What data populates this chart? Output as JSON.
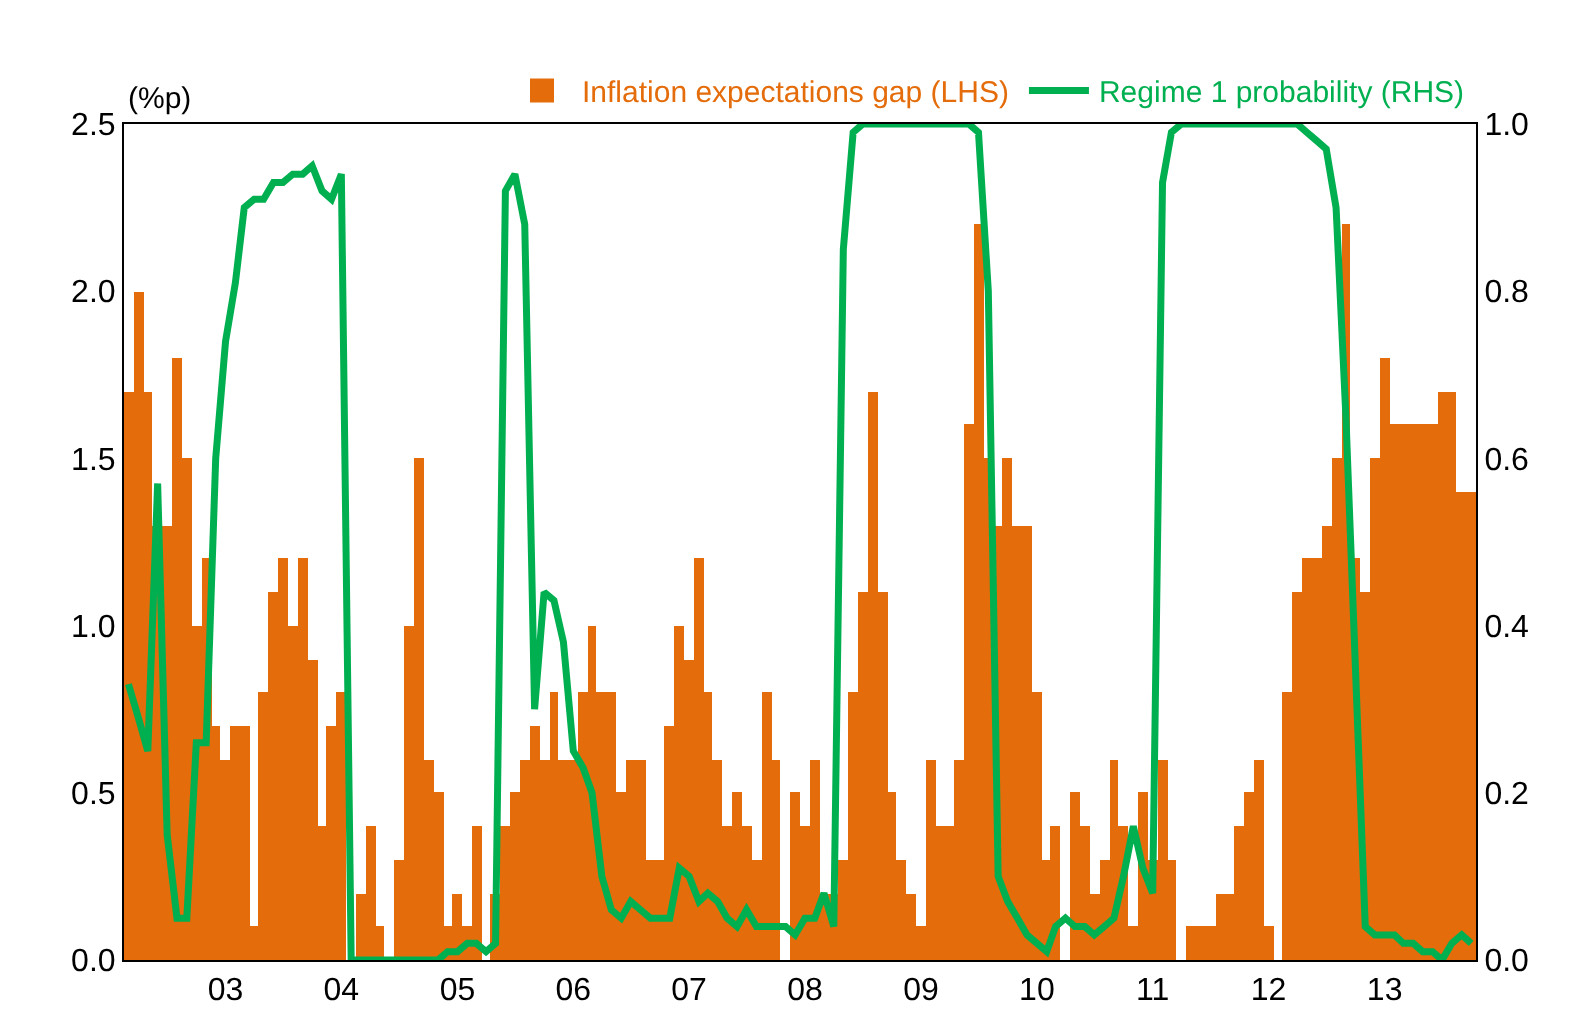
{
  "chart_data": {
    "type": "bar",
    "ylabel": "(%p)",
    "x": [
      "2002-03",
      "2002-04",
      "2002-05",
      "2002-06",
      "2002-07",
      "2002-08",
      "2002-09",
      "2002-10",
      "2002-11",
      "2002-12",
      "2003-01",
      "2003-02",
      "2003-03",
      "2003-04",
      "2003-05",
      "2003-06",
      "2003-07",
      "2003-08",
      "2003-09",
      "2003-10",
      "2003-11",
      "2003-12",
      "2004-01",
      "2004-02",
      "2004-03",
      "2004-04",
      "2004-05",
      "2004-06",
      "2004-07",
      "2004-08",
      "2004-09",
      "2004-10",
      "2004-11",
      "2004-12",
      "2005-01",
      "2005-02",
      "2005-03",
      "2005-04",
      "2005-05",
      "2005-06",
      "2005-07",
      "2005-08",
      "2005-09",
      "2005-10",
      "2005-11",
      "2005-12",
      "2006-01",
      "2006-02",
      "2006-03",
      "2006-04",
      "2006-05",
      "2006-06",
      "2006-07",
      "2006-08",
      "2006-09",
      "2006-10",
      "2006-11",
      "2006-12",
      "2007-01",
      "2007-02",
      "2007-03",
      "2007-04",
      "2007-05",
      "2007-06",
      "2007-07",
      "2007-08",
      "2007-09",
      "2007-10",
      "2007-11",
      "2007-12",
      "2008-01",
      "2008-02",
      "2008-03",
      "2008-04",
      "2008-05",
      "2008-06",
      "2008-07",
      "2008-08",
      "2008-09",
      "2008-10",
      "2008-11",
      "2008-12",
      "2009-01",
      "2009-02",
      "2009-03",
      "2009-04",
      "2009-05",
      "2009-06",
      "2009-07",
      "2009-08",
      "2009-09",
      "2009-10",
      "2009-11",
      "2009-12",
      "2010-01",
      "2010-02",
      "2010-03",
      "2010-04",
      "2010-05",
      "2010-06",
      "2010-07",
      "2010-08",
      "2010-09",
      "2010-10",
      "2010-11",
      "2010-12",
      "2011-01",
      "2011-02",
      "2011-03",
      "2011-04",
      "2011-05",
      "2011-06",
      "2011-07",
      "2011-08",
      "2011-09",
      "2011-10",
      "2011-11",
      "2011-12",
      "2012-01",
      "2012-02",
      "2012-03",
      "2012-04",
      "2012-05",
      "2012-06",
      "2012-07",
      "2012-08",
      "2012-09",
      "2012-10",
      "2012-11",
      "2012-12",
      "2013-01",
      "2013-02",
      "2013-03",
      "2013-04",
      "2013-05",
      "2013-06",
      "2013-07",
      "2013-08",
      "2013-09",
      "2013-10"
    ],
    "series": [
      {
        "name": "Inflation expectations gap (LHS)",
        "color": "#e46c0a",
        "values": [
          1.7,
          2.0,
          1.7,
          1.3,
          1.3,
          1.8,
          1.5,
          1.0,
          1.2,
          0.7,
          0.6,
          0.7,
          0.7,
          0.1,
          0.8,
          1.1,
          1.2,
          1.0,
          1.2,
          0.9,
          0.4,
          0.7,
          0.8,
          0,
          0.2,
          0.4,
          0.1,
          0,
          0.3,
          1.0,
          1.5,
          0.6,
          0.5,
          0.1,
          0.2,
          0.1,
          0.4,
          0,
          0.2,
          0.4,
          0.5,
          0.6,
          0.7,
          0.6,
          0.8,
          0.6,
          0.6,
          0.8,
          1.0,
          0.8,
          0.8,
          0.5,
          0.6,
          0.6,
          0.3,
          0.3,
          0.7,
          1.0,
          0.9,
          1.2,
          0.8,
          0.6,
          0.4,
          0.5,
          0.4,
          0.3,
          0.8,
          0.6,
          0,
          0.5,
          0.4,
          0.6,
          0.2,
          0.2,
          0.3,
          0.8,
          1.1,
          1.7,
          1.1,
          0.5,
          0.3,
          0.2,
          0.1,
          0.6,
          0.4,
          0.4,
          0.6,
          1.6,
          2.2,
          1.5,
          1.3,
          1.5,
          1.3,
          1.3,
          0.8,
          0.3,
          0.4,
          0,
          0.5,
          0.4,
          0.2,
          0.3,
          0.6,
          0.4,
          0.1,
          0.5,
          0.3,
          0.6,
          0.3,
          0,
          0.1,
          0.1,
          0.1,
          0.2,
          0.2,
          0.4,
          0.5,
          0.6,
          0.1,
          0,
          0.8,
          1.1,
          1.2,
          1.2,
          1.3,
          1.5,
          2.2,
          1.2,
          1.1,
          1.5,
          1.8,
          1.6,
          1.6,
          1.6,
          1.6,
          1.6,
          1.7,
          1.7,
          1.4,
          1.4
        ]
      },
      {
        "name": "Regime 1 probability (RHS)",
        "type": "line",
        "axis": "y2",
        "color": "#00b050",
        "values": [
          0.33,
          0.29,
          0.25,
          0.57,
          0.15,
          0.05,
          0.05,
          0.26,
          0.26,
          0.6,
          0.74,
          0.81,
          0.9,
          0.91,
          0.91,
          0.93,
          0.93,
          0.94,
          0.94,
          0.95,
          0.92,
          0.91,
          0.94,
          0,
          0,
          0,
          0,
          0,
          0,
          0,
          0,
          0,
          0,
          0.01,
          0.01,
          0.02,
          0.02,
          0.01,
          0.02,
          0.92,
          0.94,
          0.88,
          0.3,
          0.44,
          0.43,
          0.38,
          0.25,
          0.23,
          0.2,
          0.1,
          0.06,
          0.05,
          0.07,
          0.06,
          0.05,
          0.05,
          0.05,
          0.11,
          0.1,
          0.07,
          0.08,
          0.07,
          0.05,
          0.04,
          0.06,
          0.04,
          0.04,
          0.04,
          0.04,
          0.03,
          0.05,
          0.05,
          0.08,
          0.04,
          0.85,
          0.99,
          1,
          1,
          1,
          1,
          1,
          1,
          1,
          1,
          1,
          1,
          1,
          1,
          0.99,
          0.8,
          0.1,
          0.07,
          0.05,
          0.03,
          0.02,
          0.01,
          0.04,
          0.05,
          0.04,
          0.04,
          0.03,
          0.04,
          0.05,
          0.1,
          0.16,
          0.11,
          0.08,
          0.93,
          0.99,
          1,
          1,
          1,
          1,
          1,
          1,
          1,
          1,
          1,
          1,
          1,
          1,
          1,
          0.99,
          0.98,
          0.97,
          0.9,
          0.65,
          0.35,
          0.04,
          0.03,
          0.03,
          0.03,
          0.02,
          0.02,
          0.01,
          0.01,
          0,
          0.02,
          0.03,
          0.02
        ]
      }
    ],
    "xlim": [
      "2002-02-15",
      "2013-10-16"
    ],
    "xticks": [
      {
        "value": "2003-01",
        "label": "03"
      },
      {
        "value": "2004-01",
        "label": "04"
      },
      {
        "value": "2005-01",
        "label": "05"
      },
      {
        "value": "2006-01",
        "label": "06"
      },
      {
        "value": "2007-01",
        "label": "07"
      },
      {
        "value": "2008-01",
        "label": "08"
      },
      {
        "value": "2009-01",
        "label": "09"
      },
      {
        "value": "2010-01",
        "label": "10"
      },
      {
        "value": "2011-01",
        "label": "11"
      },
      {
        "value": "2012-01",
        "label": "12"
      },
      {
        "value": "2013-01",
        "label": "13"
      }
    ],
    "ylim": [
      0,
      2.5
    ],
    "yticks": [
      {
        "value": 0,
        "label": "0.0"
      },
      {
        "value": 0.5,
        "label": "0.5"
      },
      {
        "value": 1,
        "label": "1.0"
      },
      {
        "value": 1.5,
        "label": "1.5"
      },
      {
        "value": 2,
        "label": "2.0"
      },
      {
        "value": 2.5,
        "label": "2.5"
      }
    ],
    "y2lim": [
      0,
      1
    ],
    "y2ticks": [
      {
        "value": 0,
        "label": "0.0"
      },
      {
        "value": 0.2,
        "label": "0.2"
      },
      {
        "value": 0.4,
        "label": "0.4"
      },
      {
        "value": 0.6,
        "label": "0.6"
      },
      {
        "value": 0.8,
        "label": "0.8"
      },
      {
        "value": 1,
        "label": "1.0"
      }
    ],
    "legend": "top",
    "marker": "none",
    "line_style": "solid"
  }
}
